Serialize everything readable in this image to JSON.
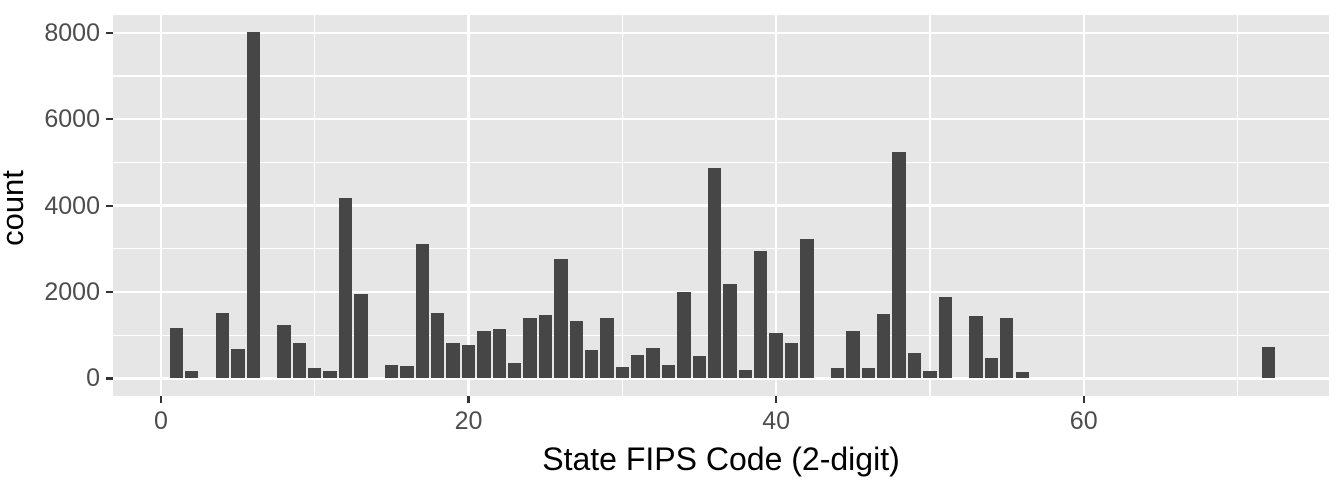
{
  "chart_data": {
    "type": "bar",
    "subtype": "histogram",
    "title": "",
    "xlabel": "State FIPS Code (2-digit)",
    "ylabel": "count",
    "legend_position": "none",
    "grid": "major-and-minor-white-on-grey",
    "panel_bg": "#E6E6E6",
    "grid_color": "#FFFFFF",
    "bar_color": "#464646",
    "tick_mark_color": "#333333",
    "tick_label_color": "#4D4D4D",
    "axis_title_color": "#000000",
    "xlim": [
      -3.12,
      75.95
    ],
    "ylim": [
      -405,
      8410
    ],
    "x_major_ticks": [
      0,
      20,
      40,
      60
    ],
    "x_minor_ticks": [
      10,
      30,
      50,
      70
    ],
    "y_major_ticks": [
      0,
      2000,
      4000,
      6000,
      8000
    ],
    "y_minor_ticks": [
      1000,
      3000,
      5000,
      7000
    ],
    "bar_width_units": 0.87,
    "bars": [
      {
        "fips": 1,
        "count": 1160
      },
      {
        "fips": 2,
        "count": 180
      },
      {
        "fips": 4,
        "count": 1520
      },
      {
        "fips": 5,
        "count": 690
      },
      {
        "fips": 6,
        "count": 8010
      },
      {
        "fips": 8,
        "count": 1240
      },
      {
        "fips": 9,
        "count": 830
      },
      {
        "fips": 10,
        "count": 240
      },
      {
        "fips": 11,
        "count": 180
      },
      {
        "fips": 12,
        "count": 4170
      },
      {
        "fips": 13,
        "count": 1960
      },
      {
        "fips": 15,
        "count": 320
      },
      {
        "fips": 16,
        "count": 300
      },
      {
        "fips": 17,
        "count": 3110
      },
      {
        "fips": 18,
        "count": 1510
      },
      {
        "fips": 19,
        "count": 830
      },
      {
        "fips": 20,
        "count": 780
      },
      {
        "fips": 21,
        "count": 1110
      },
      {
        "fips": 22,
        "count": 1140
      },
      {
        "fips": 23,
        "count": 370
      },
      {
        "fips": 24,
        "count": 1410
      },
      {
        "fips": 25,
        "count": 1470
      },
      {
        "fips": 26,
        "count": 2770
      },
      {
        "fips": 27,
        "count": 1340
      },
      {
        "fips": 28,
        "count": 650
      },
      {
        "fips": 29,
        "count": 1400
      },
      {
        "fips": 30,
        "count": 270
      },
      {
        "fips": 31,
        "count": 540
      },
      {
        "fips": 32,
        "count": 695
      },
      {
        "fips": 33,
        "count": 310
      },
      {
        "fips": 34,
        "count": 2000
      },
      {
        "fips": 35,
        "count": 515
      },
      {
        "fips": 36,
        "count": 4860
      },
      {
        "fips": 37,
        "count": 2190
      },
      {
        "fips": 38,
        "count": 200
      },
      {
        "fips": 39,
        "count": 2950
      },
      {
        "fips": 40,
        "count": 1050
      },
      {
        "fips": 41,
        "count": 820
      },
      {
        "fips": 42,
        "count": 3220
      },
      {
        "fips": 44,
        "count": 250
      },
      {
        "fips": 45,
        "count": 1110
      },
      {
        "fips": 46,
        "count": 235
      },
      {
        "fips": 47,
        "count": 1490
      },
      {
        "fips": 48,
        "count": 5240
      },
      {
        "fips": 49,
        "count": 590
      },
      {
        "fips": 50,
        "count": 175
      },
      {
        "fips": 51,
        "count": 1890
      },
      {
        "fips": 53,
        "count": 1450
      },
      {
        "fips": 54,
        "count": 480
      },
      {
        "fips": 55,
        "count": 1410
      },
      {
        "fips": 56,
        "count": 140
      },
      {
        "fips": 72,
        "count": 720
      }
    ]
  }
}
